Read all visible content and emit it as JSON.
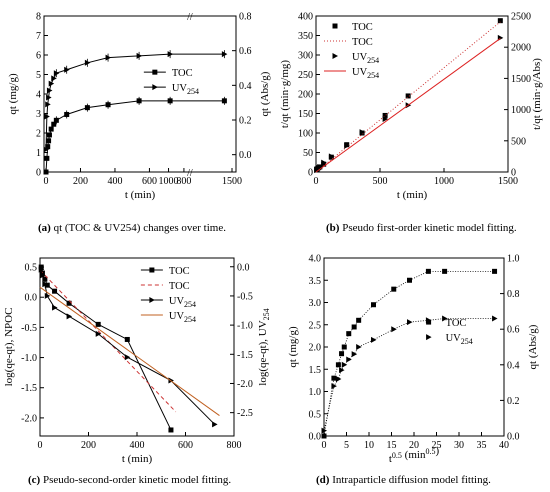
{
  "captions": {
    "a": {
      "letter": "(a)",
      "text": "qt (TOC & UV254) changes over time."
    },
    "b": {
      "letter": "(b)",
      "text": "Pseudo first-order kinetic model fitting."
    },
    "c": {
      "letter": "(c)",
      "text": "Pseudo-second-order kinetic model fitting."
    },
    "d": {
      "letter": "(d)",
      "text": "Intraparticle diffusion model fitting."
    }
  },
  "chart_data": [
    {
      "panel": "a",
      "type": "line",
      "xlabel": "t (min)",
      "ylabel": "qt (mg/g)",
      "ylabel_right": "qt (Abs/g)",
      "x_ticks": [
        "0",
        "200",
        "400",
        "600",
        "800",
        "1000",
        "1500"
      ],
      "ylim": [
        0,
        8
      ],
      "y_ticks": [
        "0",
        "1",
        "2",
        "3",
        "4",
        "5",
        "6",
        "7",
        "8"
      ],
      "ylim_right": [
        -0.1,
        0.8
      ],
      "y_right_ticks": [
        "0.0",
        "0.2",
        "0.4",
        "0.6",
        "0.8"
      ],
      "axis_break": "//",
      "legend": "center-right",
      "series": [
        {
          "name": "TOC",
          "marker": "square",
          "axis": "left",
          "x": [
            0,
            5,
            10,
            15,
            20,
            30,
            45,
            60,
            120,
            240,
            360,
            540,
            720,
            1440
          ],
          "y": [
            0,
            0.7,
            1.3,
            1.6,
            1.9,
            2.2,
            2.45,
            2.65,
            2.95,
            3.3,
            3.45,
            3.65,
            3.65,
            3.65
          ]
        },
        {
          "name": "UV254",
          "marker": "triangle-right",
          "axis": "right",
          "x": [
            0,
            5,
            10,
            15,
            20,
            30,
            45,
            60,
            120,
            240,
            360,
            540,
            720,
            1440
          ],
          "y": [
            0.03,
            0.22,
            0.29,
            0.33,
            0.37,
            0.41,
            0.44,
            0.47,
            0.49,
            0.53,
            0.56,
            0.57,
            0.58,
            0.58
          ]
        }
      ]
    },
    {
      "panel": "b",
      "type": "scatter",
      "xlabel": "t (min)",
      "ylabel": "t/qt (min·g/mg)",
      "ylabel_right": "t/qt (min·g/Abs)",
      "xlim": [
        0,
        1500
      ],
      "x_ticks": [
        "0",
        "500",
        "1000",
        "1500"
      ],
      "ylim": [
        0,
        400
      ],
      "y_ticks": [
        "0",
        "50",
        "100",
        "150",
        "200",
        "250",
        "300",
        "350",
        "400"
      ],
      "ylim_right": [
        0,
        2500
      ],
      "y_right_ticks": [
        "0",
        "500",
        "1000",
        "1500",
        "2000",
        "2500"
      ],
      "legend": "top-left",
      "series": [
        {
          "name": "TOC",
          "marker": "square",
          "axis": "left",
          "x": [
            5,
            10,
            20,
            30,
            60,
            120,
            240,
            360,
            540,
            720,
            1440
          ],
          "y": [
            7,
            8,
            11,
            13,
            20,
            38,
            70,
            100,
            145,
            195,
            388
          ]
        },
        {
          "name": "TOC",
          "style": "dotted-line",
          "axis": "left",
          "x": [
            0,
            1440
          ],
          "y": [
            0,
            385
          ]
        },
        {
          "name": "UV254",
          "marker": "triangle-right",
          "axis": "right",
          "x": [
            5,
            10,
            20,
            30,
            60,
            120,
            240,
            360,
            540,
            720,
            1440
          ],
          "y": [
            30,
            45,
            60,
            80,
            150,
            250,
            420,
            640,
            850,
            1070,
            2150
          ]
        },
        {
          "name": "UV254",
          "style": "solid-line",
          "axis": "right",
          "x": [
            0,
            1440
          ],
          "y": [
            0,
            2140
          ]
        }
      ]
    },
    {
      "panel": "c",
      "type": "line",
      "xlabel": "t (min)",
      "ylabel": "log(qe-qt), NPOC",
      "ylabel_right": "log(qe-qt), UV254",
      "xlim": [
        0,
        800
      ],
      "x_ticks": [
        "0",
        "200",
        "400",
        "600",
        "800"
      ],
      "ylim": [
        -2.3,
        0.65
      ],
      "y_ticks": [
        "-2.0",
        "-1.5",
        "-1.0",
        "-0.5",
        "0.0",
        "0.5"
      ],
      "ylim_right": [
        -2.9,
        0.15
      ],
      "y_right_ticks": [
        "-2.5",
        "-2.0",
        "-1.5",
        "-1.0",
        "-0.5",
        "0.0"
      ],
      "legend": "top-right",
      "series": [
        {
          "name": "TOC",
          "marker": "square",
          "axis": "left",
          "x": [
            5,
            10,
            20,
            30,
            60,
            120,
            240,
            360,
            540
          ],
          "y": [
            0.5,
            0.4,
            0.3,
            0.2,
            0.1,
            -0.1,
            -0.45,
            -0.7,
            -2.2
          ]
        },
        {
          "name": "TOC",
          "style": "dashed-line",
          "axis": "left",
          "x": [
            0,
            560
          ],
          "y": [
            0.45,
            -1.9
          ]
        },
        {
          "name": "UV254",
          "marker": "triangle-right",
          "axis": "right",
          "x": [
            5,
            10,
            20,
            30,
            60,
            120,
            240,
            360,
            540,
            720
          ],
          "y": [
            -0.05,
            -0.15,
            -0.3,
            -0.5,
            -0.7,
            -0.85,
            -1.15,
            -1.55,
            -1.95,
            -2.7
          ]
        },
        {
          "name": "UV254",
          "style": "solid-line",
          "axis": "right",
          "x": [
            0,
            740
          ],
          "y": [
            -0.35,
            -2.55
          ]
        }
      ]
    },
    {
      "panel": "d",
      "type": "scatter",
      "xlabel": "t0.5 (min0.5)",
      "ylabel": "qt (mg/g)",
      "ylabel_right": "qt (Abs/g)",
      "xlim": [
        0,
        40
      ],
      "x_ticks": [
        "0",
        "5",
        "10",
        "15",
        "20",
        "25",
        "30",
        "35",
        "40"
      ],
      "ylim": [
        0,
        4.0
      ],
      "y_ticks": [
        "0.0",
        "0.5",
        "1.0",
        "1.5",
        "2.0",
        "2.5",
        "3.0",
        "3.5",
        "4.0"
      ],
      "ylim_right": [
        0,
        1.0
      ],
      "y_right_ticks": [
        "0.0",
        "0.2",
        "0.4",
        "0.6",
        "0.8",
        "1.0"
      ],
      "legend": "center-right",
      "series": [
        {
          "name": "TOC",
          "marker": "square",
          "axis": "left",
          "x": [
            0,
            2.2,
            3.2,
            3.9,
            4.5,
            5.5,
            6.7,
            7.7,
            11,
            15.5,
            19,
            23.2,
            26.8,
            37.9
          ],
          "y": [
            0,
            1.3,
            1.6,
            1.85,
            2.0,
            2.3,
            2.45,
            2.6,
            2.95,
            3.3,
            3.5,
            3.7,
            3.7,
            3.7
          ]
        },
        {
          "name": "UV254",
          "marker": "triangle-right",
          "axis": "right",
          "x": [
            0,
            2.2,
            3.2,
            3.9,
            4.5,
            5.5,
            6.7,
            7.7,
            11,
            15.5,
            19,
            23.2,
            26.8,
            37.9
          ],
          "y": [
            0.03,
            0.28,
            0.32,
            0.37,
            0.4,
            0.43,
            0.46,
            0.5,
            0.54,
            0.6,
            0.64,
            0.65,
            0.66,
            0.66
          ]
        }
      ]
    }
  ]
}
